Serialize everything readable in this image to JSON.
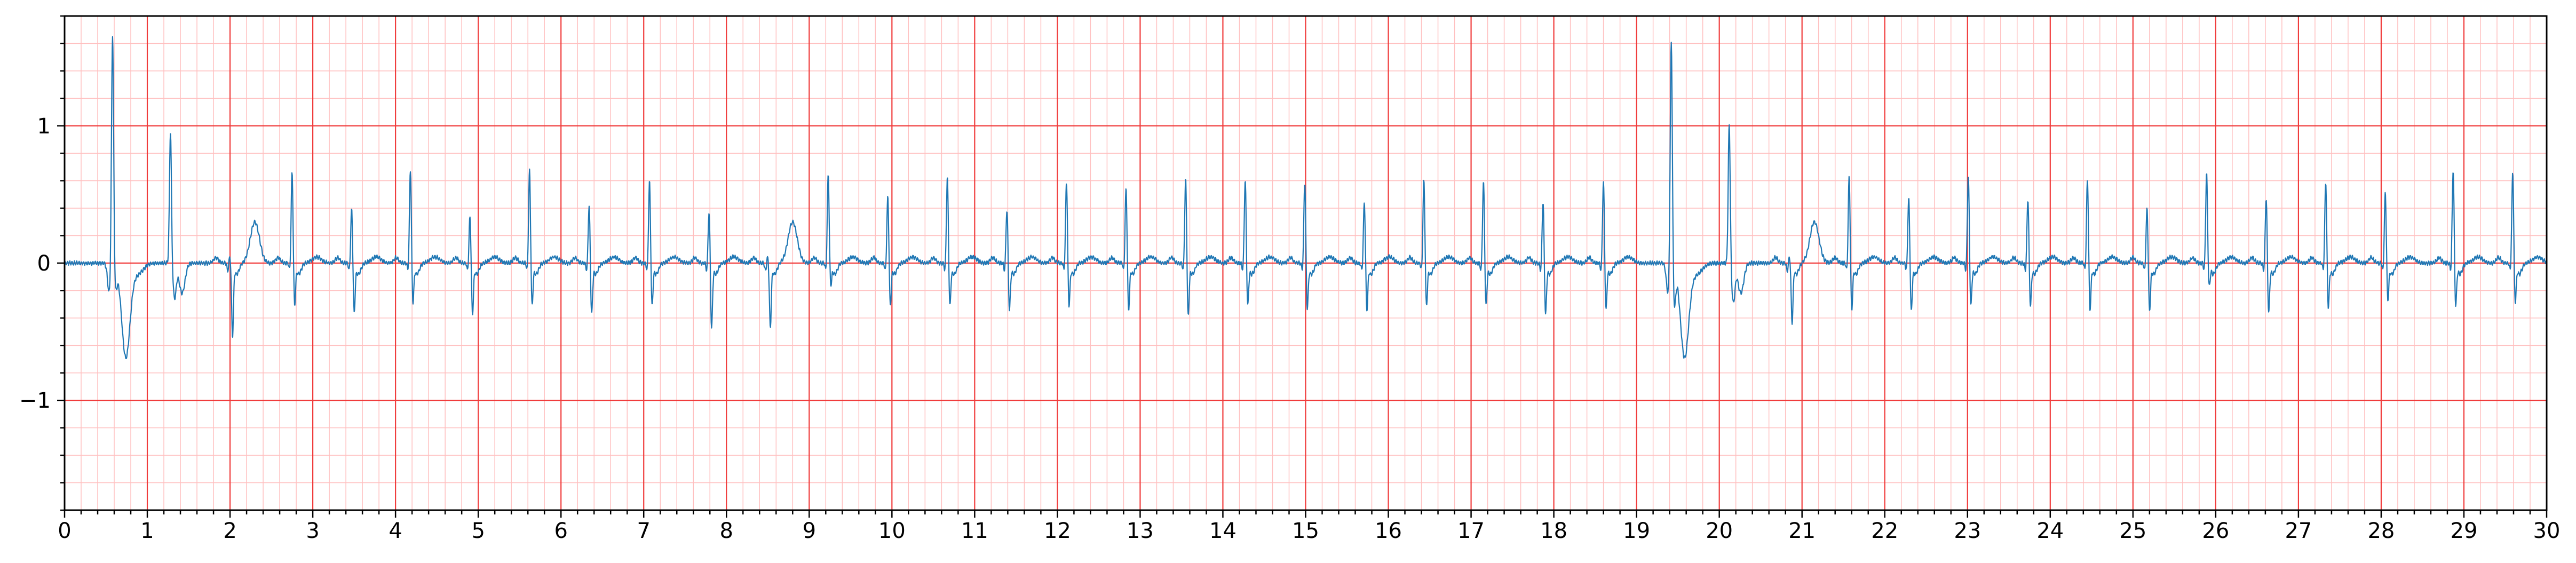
{
  "chart_data": {
    "type": "line",
    "title": "",
    "xlabel": "",
    "ylabel": "",
    "xlim": [
      0,
      30
    ],
    "ylim": [
      -1.8,
      1.8
    ],
    "grid": true,
    "colors": {
      "line": "#1f77b4",
      "grid_major": "#f03c3c",
      "grid_minor": "#ffc0c0",
      "background": "#ffffff",
      "axes": "#000000"
    },
    "x_major_step": 1,
    "x_minor_step": 0.2,
    "y_major_step": 1,
    "y_minor_step": 0.2,
    "x_tick_labels": [
      "0",
      "1",
      "2",
      "3",
      "4",
      "5",
      "6",
      "7",
      "8",
      "9",
      "10",
      "11",
      "12",
      "13",
      "14",
      "15",
      "16",
      "17",
      "18",
      "19",
      "20",
      "21",
      "22",
      "23",
      "24",
      "25",
      "26",
      "27",
      "28",
      "29",
      "30"
    ],
    "y_ticks": [
      {
        "value": 1,
        "label": "1"
      },
      {
        "value": 0,
        "label": "0"
      },
      {
        "value": -1,
        "label": "−1"
      }
    ],
    "beats": [
      {
        "t": 0.58,
        "amp": 1.72,
        "s": -0.18,
        "kind": "pvc"
      },
      {
        "t": 1.28,
        "amp": 0.96,
        "s": -0.25,
        "kind": "ectopic"
      },
      {
        "t": 2.0,
        "amp": 0.05,
        "s": -0.52,
        "kind": "normal"
      },
      {
        "t": 2.75,
        "amp": 0.67,
        "s": -0.3,
        "kind": "normal"
      },
      {
        "t": 3.47,
        "amp": 0.4,
        "s": -0.35,
        "kind": "normal"
      },
      {
        "t": 4.18,
        "amp": 0.69,
        "s": -0.28,
        "kind": "normal"
      },
      {
        "t": 4.9,
        "amp": 0.34,
        "s": -0.36,
        "kind": "normal"
      },
      {
        "t": 5.62,
        "amp": 0.68,
        "s": -0.3,
        "kind": "normal"
      },
      {
        "t": 6.34,
        "amp": 0.42,
        "s": -0.36,
        "kind": "normal"
      },
      {
        "t": 7.07,
        "amp": 0.6,
        "s": -0.3,
        "kind": "normal"
      },
      {
        "t": 7.79,
        "amp": 0.38,
        "s": -0.46,
        "kind": "normal"
      },
      {
        "t": 8.5,
        "amp": 0.05,
        "s": -0.45,
        "kind": "normal"
      },
      {
        "t": 9.23,
        "amp": 0.65,
        "s": -0.15,
        "kind": "normal"
      },
      {
        "t": 9.95,
        "amp": 0.49,
        "s": -0.3,
        "kind": "normal"
      },
      {
        "t": 10.67,
        "amp": 0.63,
        "s": -0.3,
        "kind": "normal"
      },
      {
        "t": 11.39,
        "amp": 0.4,
        "s": -0.33,
        "kind": "normal"
      },
      {
        "t": 12.11,
        "amp": 0.6,
        "s": -0.3,
        "kind": "normal"
      },
      {
        "t": 12.83,
        "amp": 0.55,
        "s": -0.33,
        "kind": "normal"
      },
      {
        "t": 13.55,
        "amp": 0.62,
        "s": -0.38,
        "kind": "normal"
      },
      {
        "t": 14.27,
        "amp": 0.61,
        "s": -0.3,
        "kind": "normal"
      },
      {
        "t": 14.99,
        "amp": 0.6,
        "s": -0.32,
        "kind": "normal"
      },
      {
        "t": 15.71,
        "amp": 0.45,
        "s": -0.33,
        "kind": "normal"
      },
      {
        "t": 16.43,
        "amp": 0.61,
        "s": -0.3,
        "kind": "normal"
      },
      {
        "t": 17.15,
        "amp": 0.6,
        "s": -0.3,
        "kind": "normal"
      },
      {
        "t": 17.87,
        "amp": 0.45,
        "s": -0.36,
        "kind": "normal"
      },
      {
        "t": 18.6,
        "amp": 0.6,
        "s": -0.33,
        "kind": "normal"
      },
      {
        "t": 19.42,
        "amp": 1.68,
        "s": -0.3,
        "kind": "pvc"
      },
      {
        "t": 20.12,
        "amp": 1.02,
        "s": -0.28,
        "kind": "ectopic"
      },
      {
        "t": 20.85,
        "amp": 0.05,
        "s": -0.42,
        "kind": "normal"
      },
      {
        "t": 21.57,
        "amp": 0.64,
        "s": -0.33,
        "kind": "normal"
      },
      {
        "t": 22.29,
        "amp": 0.48,
        "s": -0.34,
        "kind": "normal"
      },
      {
        "t": 23.01,
        "amp": 0.65,
        "s": -0.3,
        "kind": "normal"
      },
      {
        "t": 23.73,
        "amp": 0.47,
        "s": -0.3,
        "kind": "normal"
      },
      {
        "t": 24.45,
        "amp": 0.62,
        "s": -0.33,
        "kind": "normal"
      },
      {
        "t": 25.17,
        "amp": 0.4,
        "s": -0.34,
        "kind": "normal"
      },
      {
        "t": 25.89,
        "amp": 0.66,
        "s": -0.16,
        "kind": "normal"
      },
      {
        "t": 26.61,
        "amp": 0.48,
        "s": -0.35,
        "kind": "normal"
      },
      {
        "t": 27.33,
        "amp": 0.6,
        "s": -0.31,
        "kind": "normal"
      },
      {
        "t": 28.05,
        "amp": 0.52,
        "s": -0.26,
        "kind": "normal"
      },
      {
        "t": 28.87,
        "amp": 0.69,
        "s": -0.3,
        "kind": "normal"
      },
      {
        "t": 29.59,
        "amp": 0.67,
        "s": -0.28,
        "kind": "normal"
      }
    ]
  }
}
